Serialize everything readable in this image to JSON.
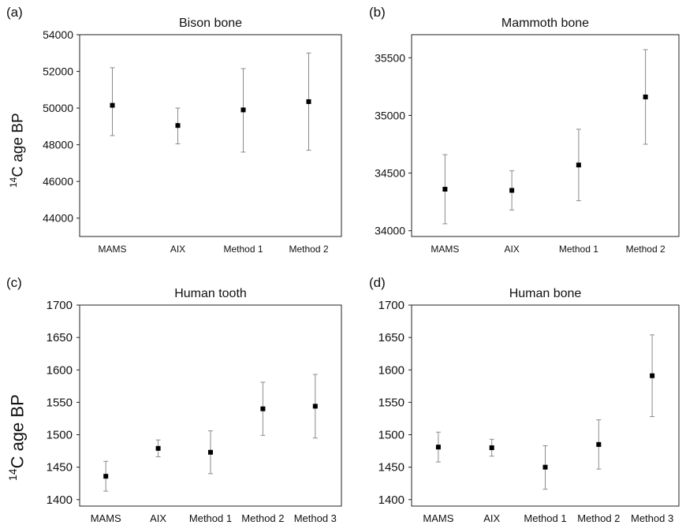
{
  "panels": [
    {
      "letter": "(a)"
    },
    {
      "letter": "(b)"
    },
    {
      "letter": "(c)"
    },
    {
      "letter": "(d)"
    }
  ],
  "ylabels": [
    {
      "prefix": "14",
      "text": "C age BP"
    },
    {
      "prefix": "14",
      "text": "C age BP"
    }
  ],
  "chart_data": [
    {
      "type": "scatter",
      "title": "Bison bone",
      "categories": [
        "MAMS",
        "AIX",
        "Method 1",
        "Method 2"
      ],
      "values": [
        50150,
        49050,
        49900,
        50350
      ],
      "err_low": [
        48500,
        48050,
        47600,
        47700
      ],
      "err_high": [
        52200,
        50000,
        52150,
        53000
      ],
      "ylim": [
        43000,
        54000
      ],
      "yticks": [
        44000,
        46000,
        48000,
        50000,
        52000,
        54000
      ],
      "ylabel": "14C age BP"
    },
    {
      "type": "scatter",
      "title": "Mammoth bone",
      "categories": [
        "MAMS",
        "AIX",
        "Method 1",
        "Method 2"
      ],
      "values": [
        34360,
        34350,
        34570,
        35160
      ],
      "err_low": [
        34060,
        34180,
        34260,
        34750
      ],
      "err_high": [
        34660,
        34520,
        34880,
        35570
      ],
      "ylim": [
        33950,
        35700
      ],
      "yticks": [
        34000,
        34500,
        35000,
        35500
      ],
      "ylabel": ""
    },
    {
      "type": "scatter",
      "title": "Human tooth",
      "categories": [
        "MAMS",
        "AIX",
        "Method 1",
        "Method 2",
        "Method 3"
      ],
      "values": [
        1436,
        1479,
        1473,
        1540,
        1544
      ],
      "err_low": [
        1413,
        1466,
        1440,
        1499,
        1495
      ],
      "err_high": [
        1459,
        1492,
        1506,
        1581,
        1593
      ],
      "ylim": [
        1390,
        1700
      ],
      "yticks": [
        1400,
        1450,
        1500,
        1550,
        1600,
        1650,
        1700
      ],
      "ylabel": "14C age BP"
    },
    {
      "type": "scatter",
      "title": "Human bone",
      "categories": [
        "MAMS",
        "AIX",
        "Method 1",
        "Method 2",
        "Method 3"
      ],
      "values": [
        1481,
        1480,
        1450,
        1485,
        1591
      ],
      "err_low": [
        1458,
        1467,
        1416,
        1447,
        1528
      ],
      "err_high": [
        1504,
        1493,
        1483,
        1523,
        1654
      ],
      "ylim": [
        1390,
        1700
      ],
      "yticks": [
        1400,
        1450,
        1500,
        1550,
        1600,
        1650,
        1700
      ],
      "ylabel": ""
    }
  ]
}
